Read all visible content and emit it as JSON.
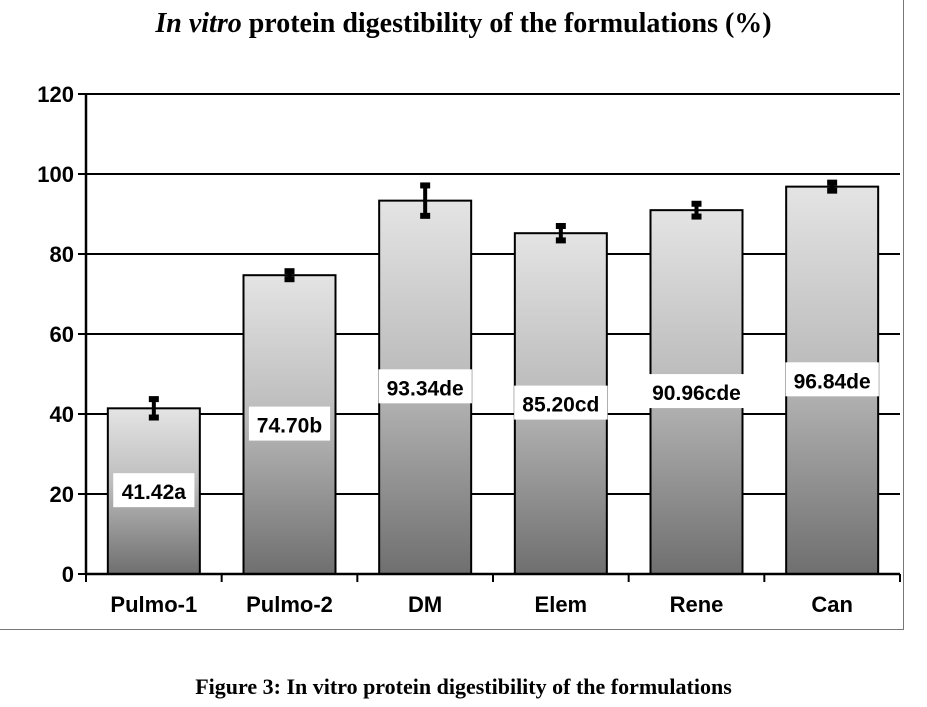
{
  "chart_data": {
    "type": "bar",
    "title_italic": "In vitro",
    "title_rest": " protein digestibility of the formulations (%)",
    "categories": [
      "Pulmo-1",
      "Pulmo-2",
      "DM",
      "Elem",
      "Rene",
      "Can"
    ],
    "values": [
      41.42,
      74.7,
      93.34,
      85.2,
      90.96,
      96.84
    ],
    "errors": [
      2.3,
      1.0,
      3.8,
      1.8,
      1.6,
      1.0
    ],
    "data_labels": [
      "41.42a",
      "74.70b",
      "93.34de",
      "85.20cd",
      "90.96cde",
      "96.84de"
    ],
    "y_ticks": [
      "0",
      "20",
      "40",
      "60",
      "80",
      "100",
      "120"
    ],
    "ylim": [
      0,
      120
    ],
    "grid": true,
    "legend": "none"
  },
  "caption": "Figure 3: In vitro protein digestibility of the formulations"
}
